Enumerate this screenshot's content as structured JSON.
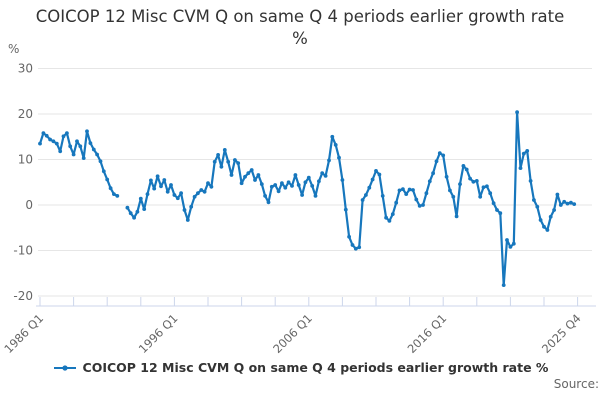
{
  "title": "COICOP 12 Misc CVM Q on same Q 4 periods earlier growth rate %",
  "legend": {
    "label": "COICOP 12 Misc CVM Q on same Q 4 periods earlier growth rate %"
  },
  "source_label": "Source:",
  "colors": {
    "line": "#1777bd",
    "grid": "#e6e6e6",
    "axis": "#ccd6eb",
    "title_text": "#333333",
    "tick_text": "#666666"
  },
  "chart_data": {
    "type": "line",
    "title": "COICOP 12 Misc CVM Q on same Q 4 periods earlier growth rate %",
    "ylabel": "%",
    "ylim": [
      -20,
      30
    ],
    "yticks": [
      30,
      20,
      10,
      0,
      -10,
      -20
    ],
    "grid": true,
    "legend_position": "bottom",
    "x_start": "1986 Q1",
    "x_end": "2025 Q4",
    "x_frequency": "quarterly",
    "xticks": {
      "interval_quarters": 10,
      "count": 17,
      "labels": [
        {
          "tick": 0,
          "label": "1986 Q1"
        },
        {
          "tick": 4,
          "label": "1996 Q1"
        },
        {
          "tick": 8,
          "label": "2006 Q1"
        },
        {
          "tick": 12,
          "label": "2016 Q1"
        },
        {
          "tick": 16,
          "label": "2025 Q4"
        }
      ]
    },
    "series": [
      {
        "name": "COICOP 12 Misc CVM Q on same Q 4 periods earlier growth rate %",
        "values": [
          13.5,
          15.8,
          15.2,
          14.4,
          14.0,
          13.5,
          11.8,
          15.1,
          15.8,
          12.9,
          11.1,
          14.0,
          12.9,
          10.3,
          16.2,
          13.6,
          12.2,
          11.1,
          9.6,
          7.4,
          5.6,
          3.7,
          2.4,
          2.0,
          null,
          null,
          -0.6,
          -1.8,
          -2.8,
          -1.5,
          1.4,
          -0.9,
          2.4,
          5.4,
          3.6,
          6.3,
          4.1,
          5.5,
          2.9,
          4.4,
          2.2,
          1.5,
          2.6,
          -1.1,
          -3.3,
          -0.4,
          1.8,
          2.6,
          3.3,
          2.9,
          4.8,
          4.0,
          9.5,
          11.0,
          8.4,
          12.1,
          9.5,
          6.6,
          9.9,
          9.2,
          4.8,
          6.2,
          7.0,
          7.7,
          5.5,
          6.6,
          4.6,
          2.0,
          0.6,
          4.0,
          4.4,
          3.0,
          4.8,
          3.8,
          5.0,
          4.2,
          6.6,
          4.4,
          2.2,
          5.0,
          6.0,
          4.2,
          2.0,
          5.2,
          7.0,
          6.4,
          9.8,
          15.0,
          13.2,
          10.4,
          5.5,
          -1.0,
          -7.0,
          -8.8,
          -9.6,
          -9.3,
          1.1,
          2.2,
          3.8,
          5.6,
          7.5,
          6.7,
          2.0,
          -2.8,
          -3.5,
          -2.0,
          0.5,
          3.2,
          3.5,
          2.4,
          3.4,
          3.3,
          1.2,
          -0.2,
          0.0,
          2.6,
          5.2,
          7.0,
          9.6,
          11.4,
          10.9,
          6.2,
          3.2,
          1.8,
          -2.5,
          4.6,
          8.6,
          7.8,
          5.8,
          5.1,
          5.3,
          1.8,
          3.9,
          4.1,
          2.6,
          0.4,
          -1.1,
          -1.8,
          -17.6,
          -7.7,
          -9.2,
          -8.5,
          20.4,
          8.1,
          11.3,
          11.9,
          5.3,
          1.1,
          -0.4,
          -3.3,
          -4.8,
          -5.5,
          -2.6,
          -1.1,
          2.3,
          0.0,
          0.7,
          0.3,
          0.5,
          0.2
        ]
      }
    ]
  }
}
